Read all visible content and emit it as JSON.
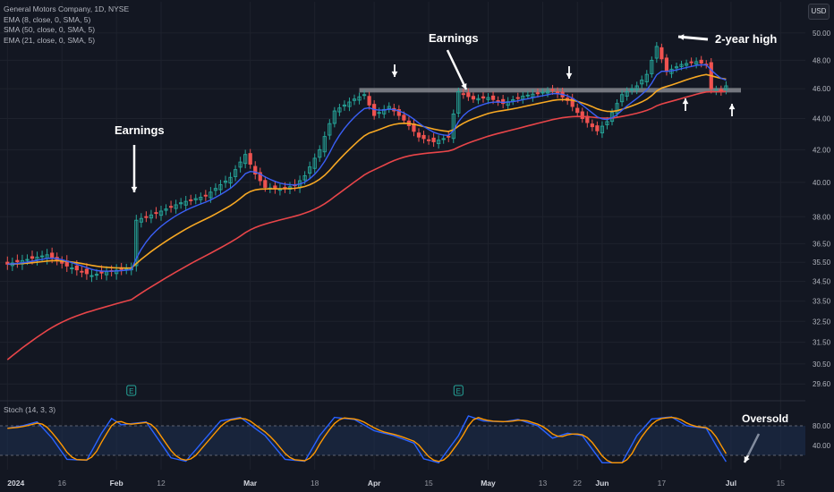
{
  "legend": {
    "symbol": "General Motors Company, 1D, NYSE",
    "ind1": "EMA (8, close, 0, SMA, 5)",
    "ind2": "SMA (50, close, 0, SMA, 5)",
    "ind3": "EMA (21, close, 0, SMA, 5)"
  },
  "currency_button": "USD",
  "stoch_label": "Stoch (14, 3, 3)",
  "annotations": {
    "earnings1": "Earnings",
    "earnings2": "Earnings",
    "high": "2-year high",
    "oversold": "Oversold"
  },
  "earnings_marker": "E",
  "chart_data": {
    "type": "candlestick",
    "title": "General Motors Company, 1D, NYSE",
    "y_axis_ticks": [
      "50.00",
      "48.00",
      "46.00",
      "44.00",
      "42.00",
      "40.00",
      "38.00",
      "36.50",
      "35.50",
      "34.50",
      "33.50",
      "32.50",
      "31.50",
      "30.50",
      "29.60"
    ],
    "y_axis_values": [
      50,
      48,
      46,
      44,
      42,
      40,
      38,
      36.5,
      35.5,
      34.5,
      33.5,
      32.5,
      31.5,
      30.5,
      29.6
    ],
    "y_scale": "log",
    "ylim": [
      29.1,
      51.0
    ],
    "x_axis_ticks": [
      "2024",
      "16",
      "Feb",
      "12",
      "Mar",
      "18",
      "Apr",
      "15",
      "May",
      "13",
      "22",
      "Jun",
      "17",
      "Jul",
      "15"
    ],
    "x_axis_positions_day": [
      0,
      11,
      22,
      31,
      49,
      62,
      74,
      85,
      97,
      108,
      115,
      120,
      132,
      146,
      156
    ],
    "x_axis_bold": [
      "2024",
      "Feb",
      "Mar",
      "Apr",
      "May",
      "Jun",
      "Jul"
    ],
    "xlim_days": [
      -1.5,
      161
    ],
    "series_colors": {
      "ema8": "#3a5ff5",
      "sma50": "#e84549",
      "ema21": "#f7a823",
      "up": "#26a69a",
      "down": "#ef5350"
    },
    "price_waypoints": [
      [
        0,
        35.4
      ],
      [
        8,
        35.9
      ],
      [
        12,
        35.3
      ],
      [
        17,
        34.8
      ],
      [
        20,
        35.0
      ],
      [
        25,
        35.2
      ],
      [
        26,
        37.8
      ],
      [
        30,
        38.2
      ],
      [
        35,
        38.8
      ],
      [
        40,
        39.2
      ],
      [
        45,
        40.3
      ],
      [
        48,
        41.7
      ],
      [
        50,
        40.5
      ],
      [
        52,
        39.7
      ],
      [
        55,
        39.6
      ],
      [
        58,
        39.8
      ],
      [
        60,
        40.4
      ],
      [
        63,
        42.0
      ],
      [
        66,
        44.5
      ],
      [
        70,
        45.3
      ],
      [
        72,
        45.6
      ],
      [
        74,
        44.2
      ],
      [
        77,
        44.8
      ],
      [
        80,
        43.9
      ],
      [
        83,
        42.8
      ],
      [
        86,
        42.5
      ],
      [
        89,
        42.8
      ],
      [
        91,
        45.8
      ],
      [
        94,
        45.3
      ],
      [
        97,
        45.4
      ],
      [
        100,
        45.0
      ],
      [
        104,
        45.5
      ],
      [
        110,
        45.9
      ],
      [
        113,
        45.2
      ],
      [
        116,
        44.0
      ],
      [
        119,
        43.2
      ],
      [
        121,
        43.8
      ],
      [
        124,
        45.6
      ],
      [
        127,
        46.2
      ],
      [
        129,
        47.0
      ],
      [
        131,
        49.0
      ],
      [
        133,
        47.2
      ],
      [
        136,
        47.7
      ],
      [
        139,
        47.9
      ],
      [
        141,
        47.7
      ],
      [
        142,
        46.0
      ],
      [
        144,
        45.8
      ],
      [
        145,
        46.2
      ]
    ],
    "candle_pattern": [
      0.35,
      -0.25,
      0.45,
      -0.4,
      0.15,
      0.5,
      -0.3,
      0.2,
      -0.45,
      0.3,
      0.05,
      -0.2,
      0.4,
      -0.35
    ],
    "ema8_label": "EMA 8",
    "ema21_label": "EMA 21",
    "sma50_start": 30.5,
    "resistance_level": 45.9,
    "resistance_days": [
      71,
      148
    ],
    "earnings_days": [
      25,
      91
    ],
    "stoch_levels": [
      80,
      20
    ],
    "stoch_ticks": [
      "80.00",
      "40.00"
    ],
    "stoch_tick_values": [
      80,
      40
    ],
    "stoch_waypoints": [
      [
        0,
        75
      ],
      [
        3,
        80
      ],
      [
        6,
        88
      ],
      [
        9,
        55
      ],
      [
        12,
        12
      ],
      [
        16,
        10
      ],
      [
        19,
        65
      ],
      [
        21,
        95
      ],
      [
        23,
        82
      ],
      [
        28,
        88
      ],
      [
        33,
        15
      ],
      [
        36,
        8
      ],
      [
        40,
        55
      ],
      [
        43,
        90
      ],
      [
        47,
        97
      ],
      [
        52,
        60
      ],
      [
        56,
        12
      ],
      [
        60,
        8
      ],
      [
        63,
        60
      ],
      [
        66,
        97
      ],
      [
        70,
        93
      ],
      [
        74,
        70
      ],
      [
        78,
        60
      ],
      [
        82,
        45
      ],
      [
        84,
        13
      ],
      [
        87,
        5
      ],
      [
        91,
        60
      ],
      [
        93,
        100
      ],
      [
        96,
        90
      ],
      [
        100,
        88
      ],
      [
        103,
        93
      ],
      [
        107,
        80
      ],
      [
        110,
        55
      ],
      [
        113,
        65
      ],
      [
        116,
        60
      ],
      [
        120,
        5
      ],
      [
        124,
        5
      ],
      [
        127,
        60
      ],
      [
        130,
        94
      ],
      [
        134,
        98
      ],
      [
        137,
        80
      ],
      [
        141,
        75
      ],
      [
        143,
        40
      ],
      [
        145,
        7
      ],
      [
        146,
        5
      ]
    ]
  }
}
